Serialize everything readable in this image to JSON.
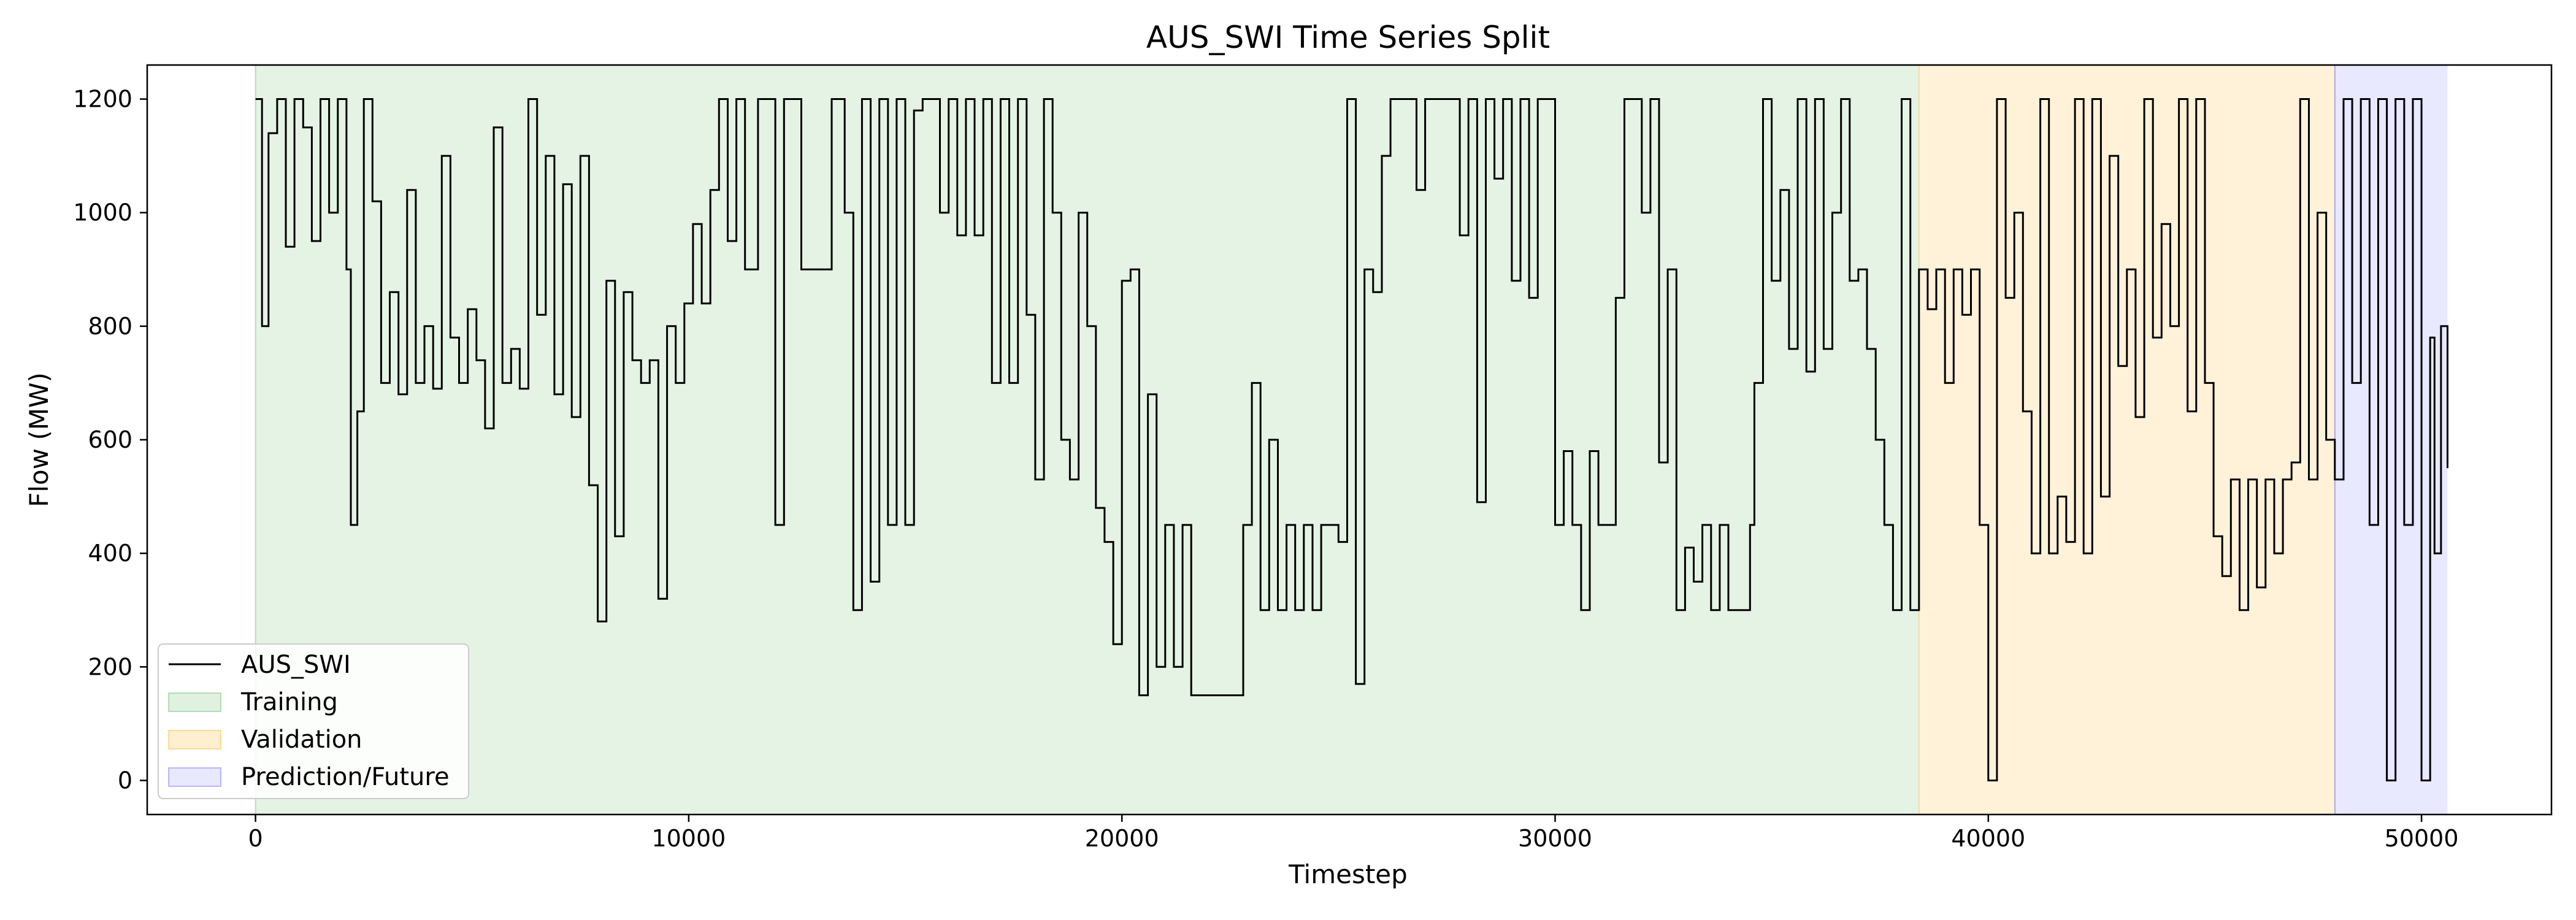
{
  "chart_data": {
    "type": "line",
    "title": "AUS_SWI Time Series Split",
    "xlabel": "Timestep",
    "ylabel": "Flow (MW)",
    "xlim": [
      -2500,
      53000
    ],
    "ylim": [
      -60,
      1260
    ],
    "xticks": [
      0,
      10000,
      20000,
      30000,
      40000,
      50000
    ],
    "yticks": [
      0,
      200,
      400,
      600,
      800,
      1000,
      1200
    ],
    "grid": false,
    "legend_placement": "lower-left",
    "series": [
      {
        "name": "AUS_SWI",
        "color": "#000000",
        "points": [
          [
            0,
            1200
          ],
          [
            150,
            800
          ],
          [
            300,
            1140
          ],
          [
            500,
            1200
          ],
          [
            700,
            940
          ],
          [
            900,
            1200
          ],
          [
            1100,
            1150
          ],
          [
            1300,
            950
          ],
          [
            1500,
            1200
          ],
          [
            1700,
            1000
          ],
          [
            1900,
            1200
          ],
          [
            2100,
            900
          ],
          [
            2200,
            450
          ],
          [
            2350,
            650
          ],
          [
            2500,
            1200
          ],
          [
            2700,
            1020
          ],
          [
            2900,
            700
          ],
          [
            3100,
            860
          ],
          [
            3300,
            680
          ],
          [
            3500,
            1040
          ],
          [
            3700,
            700
          ],
          [
            3900,
            800
          ],
          [
            4100,
            690
          ],
          [
            4300,
            1100
          ],
          [
            4500,
            780
          ],
          [
            4700,
            700
          ],
          [
            4900,
            830
          ],
          [
            5100,
            740
          ],
          [
            5300,
            620
          ],
          [
            5500,
            1150
          ],
          [
            5700,
            700
          ],
          [
            5900,
            760
          ],
          [
            6100,
            690
          ],
          [
            6300,
            1200
          ],
          [
            6500,
            820
          ],
          [
            6700,
            1100
          ],
          [
            6900,
            680
          ],
          [
            7100,
            1050
          ],
          [
            7300,
            640
          ],
          [
            7500,
            1100
          ],
          [
            7700,
            520
          ],
          [
            7900,
            280
          ],
          [
            8100,
            880
          ],
          [
            8300,
            430
          ],
          [
            8500,
            860
          ],
          [
            8700,
            740
          ],
          [
            8900,
            700
          ],
          [
            9100,
            740
          ],
          [
            9300,
            320
          ],
          [
            9500,
            800
          ],
          [
            9700,
            700
          ],
          [
            9900,
            840
          ],
          [
            10100,
            980
          ],
          [
            10300,
            840
          ],
          [
            10500,
            1040
          ],
          [
            10700,
            1200
          ],
          [
            10900,
            950
          ],
          [
            11100,
            1200
          ],
          [
            11300,
            900
          ],
          [
            11600,
            1200
          ],
          [
            11800,
            1200
          ],
          [
            12000,
            450
          ],
          [
            12200,
            1200
          ],
          [
            12400,
            1200
          ],
          [
            12600,
            900
          ],
          [
            13000,
            900
          ],
          [
            13300,
            1200
          ],
          [
            13600,
            1000
          ],
          [
            13800,
            300
          ],
          [
            14000,
            1200
          ],
          [
            14200,
            350
          ],
          [
            14400,
            1200
          ],
          [
            14600,
            450
          ],
          [
            14800,
            1200
          ],
          [
            15000,
            450
          ],
          [
            15200,
            1180
          ],
          [
            15400,
            1200
          ],
          [
            15600,
            1200
          ],
          [
            15800,
            1000
          ],
          [
            16000,
            1200
          ],
          [
            16200,
            960
          ],
          [
            16400,
            1200
          ],
          [
            16600,
            960
          ],
          [
            16800,
            1200
          ],
          [
            17000,
            700
          ],
          [
            17200,
            1200
          ],
          [
            17400,
            700
          ],
          [
            17600,
            1200
          ],
          [
            17800,
            820
          ],
          [
            18000,
            530
          ],
          [
            18200,
            1200
          ],
          [
            18400,
            1000
          ],
          [
            18600,
            600
          ],
          [
            18800,
            530
          ],
          [
            19000,
            1000
          ],
          [
            19200,
            800
          ],
          [
            19400,
            480
          ],
          [
            19600,
            420
          ],
          [
            19800,
            240
          ],
          [
            20000,
            880
          ],
          [
            20200,
            900
          ],
          [
            20400,
            150
          ],
          [
            20600,
            680
          ],
          [
            20800,
            200
          ],
          [
            21000,
            450
          ],
          [
            21200,
            200
          ],
          [
            21400,
            450
          ],
          [
            21600,
            150
          ],
          [
            22000,
            150
          ],
          [
            22400,
            150
          ],
          [
            22800,
            450
          ],
          [
            23000,
            700
          ],
          [
            23200,
            300
          ],
          [
            23400,
            600
          ],
          [
            23600,
            300
          ],
          [
            23800,
            450
          ],
          [
            24000,
            300
          ],
          [
            24200,
            450
          ],
          [
            24400,
            300
          ],
          [
            24600,
            450
          ],
          [
            24800,
            450
          ],
          [
            25000,
            420
          ],
          [
            25200,
            1200
          ],
          [
            25400,
            170
          ],
          [
            25600,
            900
          ],
          [
            25800,
            860
          ],
          [
            26000,
            1100
          ],
          [
            26200,
            1200
          ],
          [
            26600,
            1200
          ],
          [
            26800,
            1040
          ],
          [
            27000,
            1200
          ],
          [
            27300,
            1200
          ],
          [
            27600,
            1200
          ],
          [
            27800,
            960
          ],
          [
            28000,
            1200
          ],
          [
            28200,
            490
          ],
          [
            28400,
            1200
          ],
          [
            28600,
            1060
          ],
          [
            28800,
            1200
          ],
          [
            29000,
            880
          ],
          [
            29200,
            1200
          ],
          [
            29400,
            850
          ],
          [
            29600,
            1200
          ],
          [
            29800,
            1200
          ],
          [
            30000,
            450
          ],
          [
            30200,
            580
          ],
          [
            30400,
            450
          ],
          [
            30600,
            300
          ],
          [
            30800,
            580
          ],
          [
            31000,
            450
          ],
          [
            31200,
            450
          ],
          [
            31400,
            850
          ],
          [
            31600,
            1200
          ],
          [
            31800,
            1200
          ],
          [
            32000,
            1000
          ],
          [
            32200,
            1200
          ],
          [
            32400,
            560
          ],
          [
            32600,
            900
          ],
          [
            32800,
            300
          ],
          [
            33000,
            410
          ],
          [
            33200,
            350
          ],
          [
            33400,
            450
          ],
          [
            33600,
            300
          ],
          [
            33800,
            450
          ],
          [
            34000,
            300
          ],
          [
            34300,
            300
          ],
          [
            34500,
            450
          ],
          [
            34600,
            700
          ],
          [
            34800,
            1200
          ],
          [
            35000,
            880
          ],
          [
            35200,
            1040
          ],
          [
            35400,
            760
          ],
          [
            35600,
            1200
          ],
          [
            35800,
            720
          ],
          [
            36000,
            1200
          ],
          [
            36200,
            760
          ],
          [
            36400,
            1000
          ],
          [
            36600,
            1200
          ],
          [
            36800,
            880
          ],
          [
            37000,
            900
          ],
          [
            37200,
            760
          ],
          [
            37400,
            600
          ],
          [
            37600,
            450
          ],
          [
            37800,
            300
          ],
          [
            38000,
            1200
          ],
          [
            38200,
            300
          ],
          [
            38400,
            900
          ],
          [
            38600,
            830
          ],
          [
            38800,
            900
          ],
          [
            39000,
            700
          ],
          [
            39200,
            900
          ],
          [
            39400,
            820
          ],
          [
            39600,
            900
          ],
          [
            39800,
            450
          ],
          [
            40000,
            0
          ],
          [
            40200,
            1200
          ],
          [
            40400,
            850
          ],
          [
            40600,
            1000
          ],
          [
            40800,
            650
          ],
          [
            41000,
            400
          ],
          [
            41200,
            1200
          ],
          [
            41400,
            400
          ],
          [
            41600,
            500
          ],
          [
            41800,
            420
          ],
          [
            42000,
            1200
          ],
          [
            42200,
            400
          ],
          [
            42400,
            1200
          ],
          [
            42600,
            500
          ],
          [
            42800,
            1100
          ],
          [
            43000,
            730
          ],
          [
            43200,
            900
          ],
          [
            43400,
            640
          ],
          [
            43600,
            1200
          ],
          [
            43800,
            780
          ],
          [
            44000,
            980
          ],
          [
            44200,
            800
          ],
          [
            44400,
            1200
          ],
          [
            44600,
            650
          ],
          [
            44800,
            1200
          ],
          [
            45000,
            700
          ],
          [
            45200,
            430
          ],
          [
            45400,
            360
          ],
          [
            45600,
            530
          ],
          [
            45800,
            300
          ],
          [
            46000,
            530
          ],
          [
            46200,
            340
          ],
          [
            46400,
            530
          ],
          [
            46600,
            400
          ],
          [
            46800,
            530
          ],
          [
            47000,
            560
          ],
          [
            47200,
            1200
          ],
          [
            47400,
            530
          ],
          [
            47600,
            1000
          ],
          [
            47800,
            600
          ],
          [
            48000,
            530
          ],
          [
            48200,
            1200
          ],
          [
            48400,
            700
          ],
          [
            48600,
            1200
          ],
          [
            48800,
            450
          ],
          [
            49000,
            1200
          ],
          [
            49200,
            0
          ],
          [
            49400,
            1200
          ],
          [
            49600,
            450
          ],
          [
            49800,
            1200
          ],
          [
            50000,
            0
          ],
          [
            50200,
            780
          ],
          [
            50300,
            400
          ],
          [
            50450,
            800
          ],
          [
            50600,
            550
          ]
        ]
      }
    ],
    "regions": [
      {
        "name": "Training",
        "x_start": 0,
        "x_end": 38400,
        "color": "#2ca02c",
        "opacity": 0.12
      },
      {
        "name": "Validation",
        "x_start": 38400,
        "x_end": 48000,
        "color": "#ffa500",
        "opacity": 0.15
      },
      {
        "name": "Prediction/Future",
        "x_start": 48000,
        "x_end": 50600,
        "color": "#0000ff",
        "opacity": 0.09
      }
    ]
  }
}
